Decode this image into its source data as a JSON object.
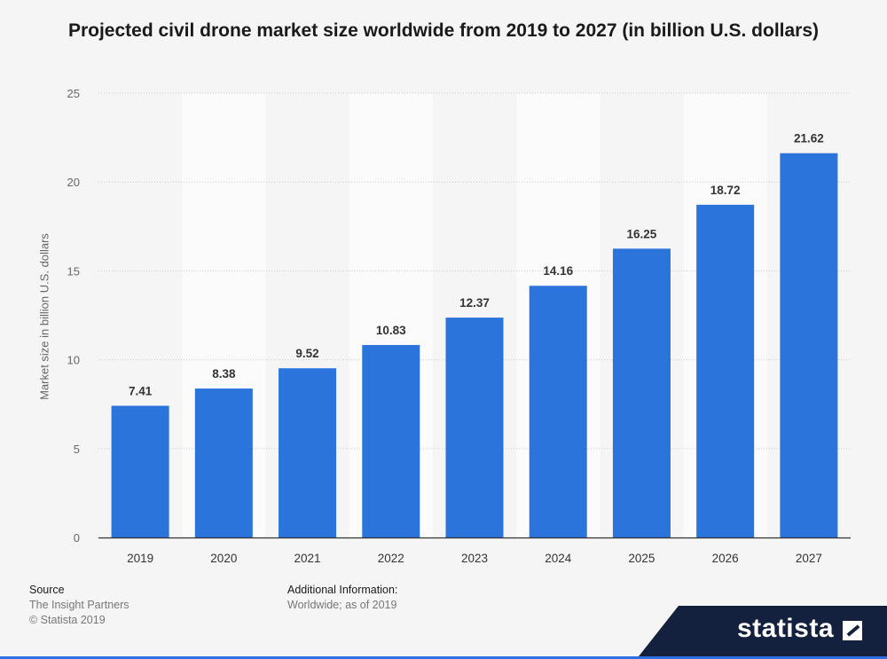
{
  "chart_data": {
    "type": "bar",
    "title": "Projected civil drone market size worldwide from 2019 to 2027 (in billion U.S. dollars)",
    "ylabel": "Market size in billion U.S. dollars",
    "xlabel": "",
    "categories": [
      "2019",
      "2020",
      "2021",
      "2022",
      "2023",
      "2024",
      "2025",
      "2026",
      "2027"
    ],
    "values": [
      7.41,
      8.38,
      9.52,
      10.83,
      12.37,
      14.16,
      16.25,
      18.72,
      21.62
    ],
    "value_labels": [
      "7.41",
      "8.38",
      "9.52",
      "10.83",
      "12.37",
      "14.16",
      "16.25",
      "18.72",
      "21.62"
    ],
    "ylim": [
      0,
      25
    ],
    "yticks": [
      0,
      5,
      10,
      15,
      20,
      25
    ],
    "grid": true,
    "bar_color": "#2a74dc"
  },
  "footer": {
    "source_heading": "Source",
    "source_lines": [
      "The Insight Partners",
      "© Statista 2019"
    ],
    "additional_heading": "Additional Information:",
    "additional_text": "Worldwide; as of 2019"
  },
  "brand": {
    "name": "statista",
    "color": "#13213f"
  }
}
